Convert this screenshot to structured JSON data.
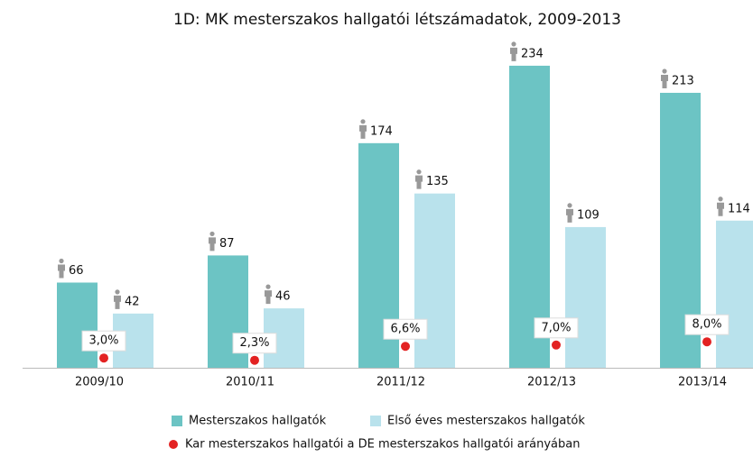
{
  "chart_data": {
    "type": "bar",
    "title": "1D: MK mesterszakos hallgatói létszámadatok, 2009-2013",
    "categories": [
      "2009/10",
      "2010/11",
      "2011/12",
      "2012/13",
      "2013/14"
    ],
    "series": [
      {
        "name": "Mesterszakos hallgatók",
        "color": "#6cc4c4",
        "values": [
          66,
          87,
          174,
          234,
          213
        ]
      },
      {
        "name": "Első éves mesterszakos hallgatók",
        "color": "#b9e2ec",
        "values": [
          42,
          46,
          135,
          109,
          114
        ]
      },
      {
        "name": "Kar mesterszakos hallgatói a DE mesterszakos hallgatói arányában",
        "color": "#e32222",
        "type": "dot",
        "values": [
          3.0,
          2.3,
          6.6,
          7.0,
          8.0
        ],
        "value_labels": [
          "3,0%",
          "2,3%",
          "6,6%",
          "7,0%",
          "8,0%"
        ]
      }
    ]
  }
}
